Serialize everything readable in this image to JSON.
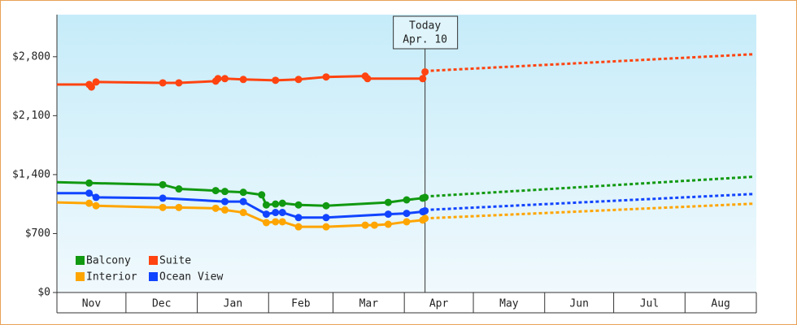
{
  "chart_data": {
    "type": "line",
    "xlim": [
      0,
      304
    ],
    "xticks": [
      0,
      30,
      61,
      92,
      120,
      151,
      181,
      212,
      242,
      273,
      304
    ],
    "months": [
      "Nov",
      "Dec",
      "Jan",
      "Feb",
      "Mar",
      "Apr",
      "May",
      "Jun",
      "Jul",
      "Aug"
    ],
    "ylim": [
      0,
      3300
    ],
    "yticks": [
      {
        "value": 0,
        "label": "$0"
      },
      {
        "value": 700,
        "label": "$700"
      },
      {
        "value": 1400,
        "label": "$1,400"
      },
      {
        "value": 2100,
        "label": "$2,100"
      },
      {
        "value": 2800,
        "label": "$2,800"
      }
    ],
    "today": {
      "x": 160,
      "label": [
        "Today",
        "Apr. 10"
      ]
    },
    "forecast_x": [
      160,
      303
    ],
    "legend": "lower left",
    "series": [
      {
        "name": "Balcony",
        "color": "#119911",
        "x": [
          0,
          14,
          46,
          53,
          69,
          73,
          81,
          89,
          91,
          95,
          98,
          105,
          117,
          144,
          152,
          159,
          160
        ],
        "values": [
          1310,
          1300,
          1280,
          1230,
          1210,
          1200,
          1190,
          1160,
          1040,
          1050,
          1060,
          1040,
          1030,
          1070,
          1100,
          1120,
          1130
        ],
        "forecast": [
          1140,
          1375
        ]
      },
      {
        "name": "Suite",
        "color": "#ff4411",
        "x": [
          0,
          14,
          15,
          17,
          46,
          53,
          69,
          70,
          73,
          81,
          95,
          105,
          117,
          134,
          135,
          159,
          160
        ],
        "values": [
          2470,
          2470,
          2440,
          2500,
          2490,
          2490,
          2510,
          2540,
          2540,
          2530,
          2520,
          2530,
          2560,
          2570,
          2540,
          2540,
          2620
        ],
        "forecast": [
          2630,
          2830
        ]
      },
      {
        "name": "Interior",
        "color": "#ffa500",
        "x": [
          0,
          14,
          17,
          46,
          53,
          69,
          73,
          81,
          91,
          95,
          98,
          105,
          117,
          134,
          138,
          144,
          152,
          159,
          160
        ],
        "values": [
          1070,
          1060,
          1030,
          1010,
          1010,
          1000,
          980,
          950,
          830,
          840,
          840,
          780,
          780,
          800,
          800,
          810,
          840,
          860,
          880
        ],
        "forecast": [
          880,
          1055
        ]
      },
      {
        "name": "Ocean View",
        "color": "#1144ff",
        "x": [
          0,
          14,
          17,
          46,
          73,
          81,
          91,
          95,
          98,
          105,
          117,
          144,
          152,
          159,
          160
        ],
        "values": [
          1180,
          1180,
          1130,
          1120,
          1080,
          1080,
          930,
          950,
          950,
          890,
          890,
          930,
          940,
          960,
          970
        ],
        "forecast": [
          980,
          1170
        ]
      }
    ]
  }
}
